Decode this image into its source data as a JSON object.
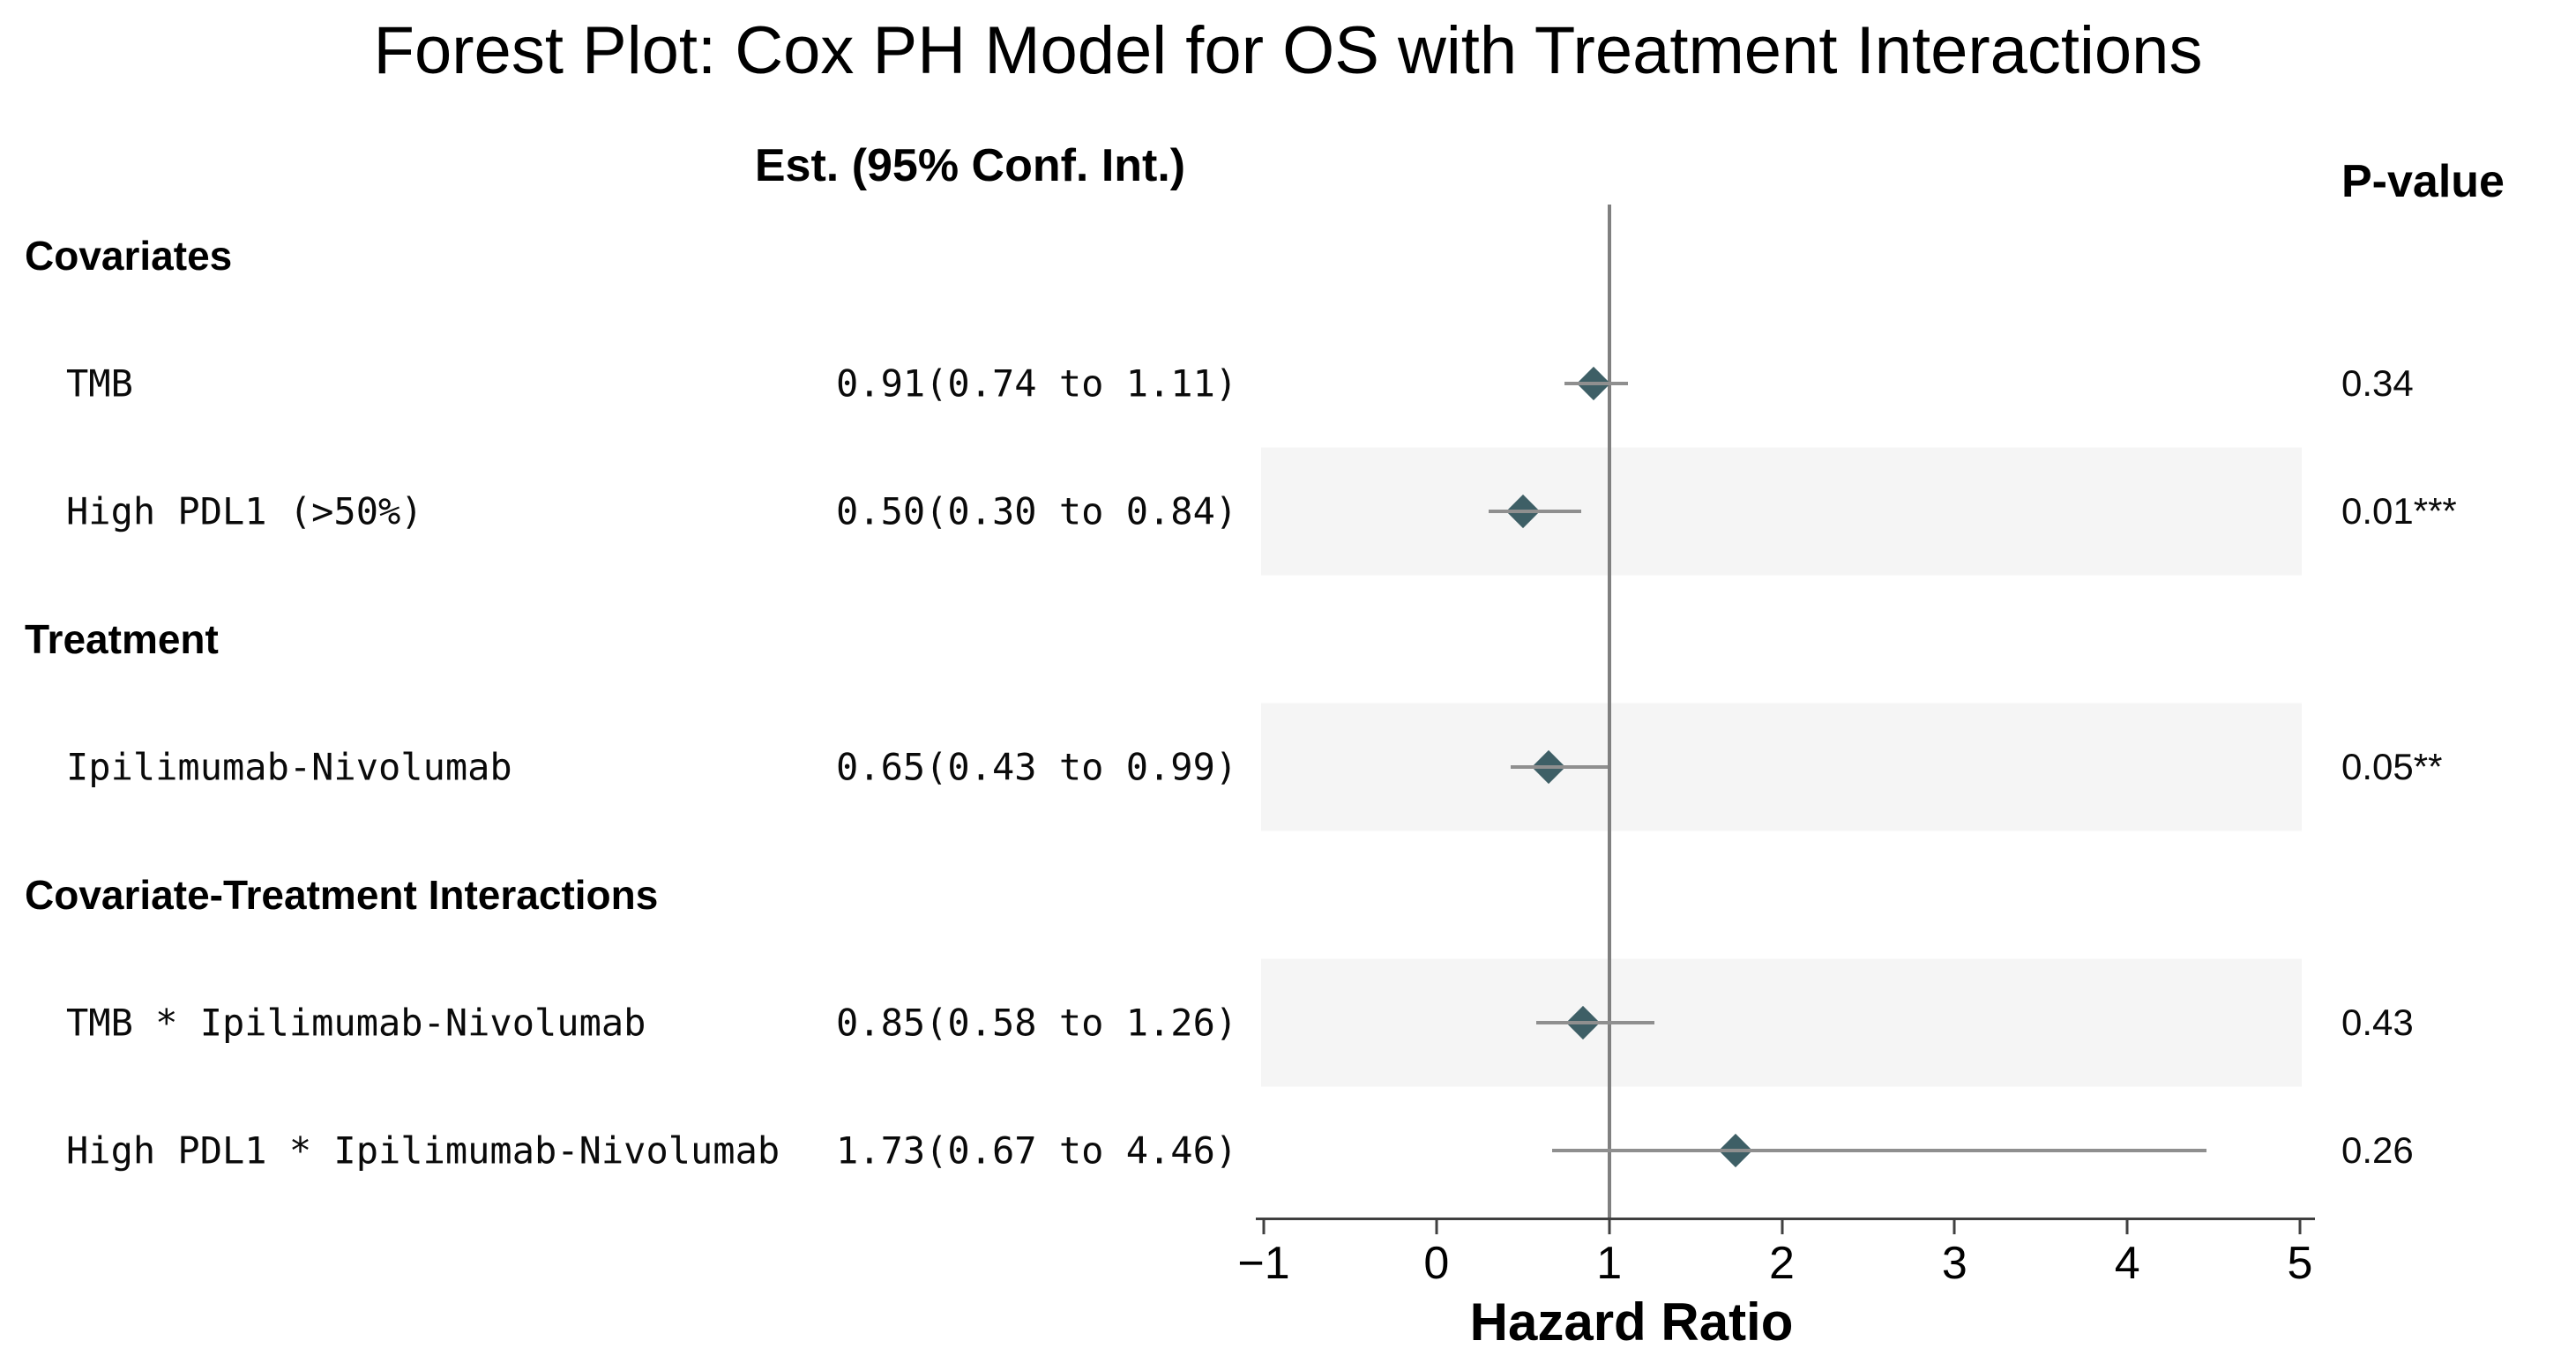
{
  "title": "Forest Plot: Cox PH Model for OS with Treatment Interactions",
  "columns": {
    "estimate_header": "Est. (95% Conf. Int.)",
    "pvalue_header": "P-value"
  },
  "chart_data": {
    "type": "forest",
    "title": "Forest Plot: Cox PH Model for OS with Treatment Interactions",
    "xlabel": "Hazard Ratio",
    "xlim": [
      -1,
      5
    ],
    "xtick_labels": [
      "−1",
      "0",
      "1",
      "2",
      "3",
      "4",
      "5"
    ],
    "xtick_values": [
      -1,
      0,
      1,
      2,
      3,
      4,
      5
    ],
    "reference_line_x": 1,
    "colors": {
      "marker": "#3e5f66",
      "ci_line": "#8f8f8f",
      "reference_line": "#808080",
      "axis": "#404040",
      "band": "#f5f5f5"
    },
    "rows": [
      {
        "kind": "section",
        "label": "Covariates"
      },
      {
        "kind": "item",
        "label": "TMB",
        "estimate_text": "0.91(0.74 to 1.11)",
        "hr": 0.91,
        "ci_low": 0.74,
        "ci_high": 1.11,
        "pvalue": "0.34",
        "shaded": false
      },
      {
        "kind": "item",
        "label": "High PDL1 (>50%)",
        "estimate_text": "0.50(0.30 to 0.84)",
        "hr": 0.5,
        "ci_low": 0.3,
        "ci_high": 0.84,
        "pvalue": "0.01***",
        "shaded": true
      },
      {
        "kind": "section",
        "label": "Treatment"
      },
      {
        "kind": "item",
        "label": "Ipilimumab-Nivolumab",
        "estimate_text": "0.65(0.43 to 0.99)",
        "hr": 0.65,
        "ci_low": 0.43,
        "ci_high": 0.99,
        "pvalue": "0.05**",
        "shaded": true
      },
      {
        "kind": "section",
        "label": "Covariate-Treatment Interactions"
      },
      {
        "kind": "item",
        "label": "TMB * Ipilimumab-Nivolumab",
        "estimate_text": "0.85(0.58 to 1.26)",
        "hr": 0.85,
        "ci_low": 0.58,
        "ci_high": 1.26,
        "pvalue": "0.43",
        "shaded": true
      },
      {
        "kind": "item",
        "label": "High PDL1 * Ipilimumab-Nivolumab",
        "estimate_text": "1.73(0.67 to 4.46)",
        "hr": 1.73,
        "ci_low": 0.67,
        "ci_high": 4.46,
        "pvalue": "0.26",
        "shaded": false
      }
    ]
  }
}
